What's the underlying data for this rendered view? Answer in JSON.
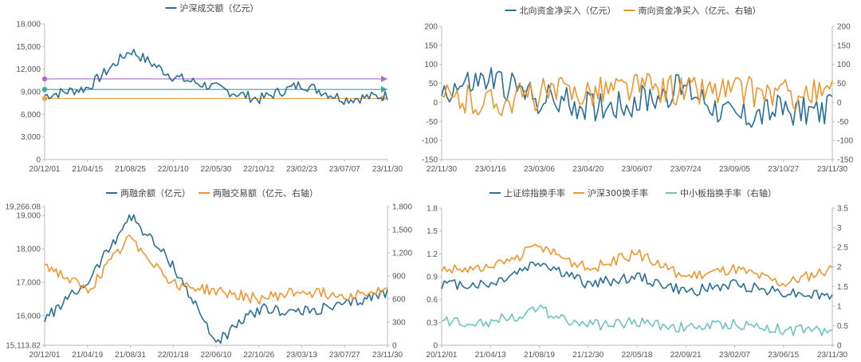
{
  "chart_data": [
    {
      "type": "line",
      "series": [
        {
          "name": "沪深成交额（亿元）",
          "color": "#2a6f97",
          "y_axis": "left",
          "x": [
            "20/12/01",
            "21/04/15",
            "21/08/25",
            "22/01/10",
            "22/05/30",
            "22/10/12",
            "23/02/23",
            "23/07/07",
            "23/11/30"
          ],
          "values": [
            8500,
            9500,
            14500,
            11000,
            9500,
            8000,
            10000,
            8000,
            8500
          ]
        }
      ],
      "x_ticks": [
        "20/12/01",
        "21/04/15",
        "21/08/25",
        "22/01/10",
        "22/05/30",
        "22/10/12",
        "23/02/23",
        "23/07/07",
        "23/11/30"
      ],
      "y_left": {
        "ticks": [
          "0",
          "3,000",
          "6,000",
          "9,000",
          "12,000",
          "15,000",
          "18,000"
        ],
        "range": [
          0,
          18000
        ]
      },
      "reference_lines": [
        {
          "value": 10700,
          "color": "#b36ad0"
        },
        {
          "value": 9300,
          "color": "#3cab9a"
        },
        {
          "value": 8100,
          "color": "#e9a84a"
        }
      ],
      "legend_position": "top-center"
    },
    {
      "type": "line",
      "series": [
        {
          "name": "北向资金净买入（亿元）",
          "color": "#2a6f97",
          "y_axis": "left",
          "x": [
            "22/11/30",
            "23/01/16",
            "23/03/06",
            "23/04/20",
            "23/06/07",
            "23/07/24",
            "23/09/05",
            "23/10/27",
            "23/11/30"
          ],
          "values": [
            30,
            60,
            10,
            -10,
            0,
            40,
            -40,
            -20,
            -20
          ]
        },
        {
          "name": "南向资金净买入（亿元、右轴）",
          "color": "#f0962e",
          "y_axis": "right",
          "x": [
            "22/11/30",
            "23/01/16",
            "23/03/06",
            "23/04/20",
            "23/06/07",
            "23/07/24",
            "23/09/05",
            "23/10/27",
            "23/11/30"
          ],
          "values": [
            10,
            0,
            20,
            30,
            40,
            30,
            30,
            20,
            20
          ]
        }
      ],
      "x_ticks": [
        "22/11/30",
        "23/01/16",
        "23/03/06",
        "23/04/20",
        "23/06/07",
        "23/07/24",
        "23/09/05",
        "23/10/27",
        "23/11/30"
      ],
      "y_left": {
        "ticks": [
          "-150",
          "-100",
          "-50",
          "0",
          "50",
          "100",
          "150",
          "200"
        ],
        "range": [
          -150,
          200
        ]
      },
      "y_right": {
        "ticks": [
          "-150",
          "-100",
          "-50",
          "0",
          "50",
          "100",
          "150",
          "200"
        ],
        "range": [
          -150,
          200
        ]
      },
      "legend_position": "top-center"
    },
    {
      "type": "line",
      "series": [
        {
          "name": "两融余额（亿元）",
          "color": "#2a6f97",
          "y_axis": "left",
          "x": [
            "20/12/01",
            "21/04/19",
            "21/08/31",
            "22/01/18",
            "22/06/10",
            "22/10/26",
            "23/03/13",
            "23/07/27",
            "23/11/30"
          ],
          "values": [
            15900,
            17000,
            19000,
            17500,
            15200,
            16200,
            16100,
            16300,
            16700
          ]
        },
        {
          "name": "两融交易额（亿元、右轴）",
          "color": "#f0962e",
          "y_axis": "right",
          "x": [
            "20/12/01",
            "21/04/19",
            "21/08/31",
            "22/01/18",
            "22/06/10",
            "22/10/26",
            "23/03/13",
            "23/07/27",
            "23/11/30"
          ],
          "values": [
            1050,
            700,
            1400,
            800,
            700,
            600,
            700,
            650,
            700
          ]
        }
      ],
      "x_ticks": [
        "20/12/01",
        "21/04/19",
        "21/08/31",
        "22/01/18",
        "22/06/10",
        "22/10/26",
        "23/03/13",
        "23/07/27",
        "23/11/30"
      ],
      "y_left": {
        "ticks": [
          "15,113.82",
          "16,000",
          "17,000",
          "18,000",
          "19,000",
          "19,266.08"
        ],
        "range": [
          15113.82,
          19266.08
        ]
      },
      "y_right": {
        "ticks": [
          "0",
          "300",
          "600",
          "900",
          "1,200",
          "1,500",
          "1,800"
        ],
        "range": [
          0,
          1800
        ]
      },
      "legend_position": "top-center"
    },
    {
      "type": "line",
      "series": [
        {
          "name": "上证综指换手率",
          "color": "#2a6f97",
          "y_axis": "left",
          "x": [
            "20/12/01",
            "21/04/13",
            "21/08/19",
            "21/12/30",
            "22/05/18",
            "22/09/21",
            "23/02/07",
            "23/06/15",
            "23/11/30"
          ],
          "values": [
            0.8,
            0.8,
            1.1,
            0.8,
            0.9,
            0.7,
            0.8,
            0.7,
            0.65
          ]
        },
        {
          "name": "沪深300换手率",
          "color": "#f0962e",
          "y_axis": "left",
          "x": [
            "20/12/01",
            "21/04/13",
            "21/08/19",
            "21/12/30",
            "22/05/18",
            "22/09/21",
            "23/02/07",
            "23/06/15",
            "23/11/30"
          ],
          "values": [
            1.0,
            1.0,
            1.3,
            1.0,
            1.2,
            0.9,
            1.0,
            0.8,
            1.0
          ]
        },
        {
          "name": "中小板指换手率（右轴）",
          "color": "#6fc3c0",
          "y_axis": "right",
          "x": [
            "20/12/01",
            "21/04/13",
            "21/08/19",
            "21/12/30",
            "22/05/18",
            "22/09/21",
            "23/02/07",
            "23/06/15",
            "23/11/30"
          ],
          "values": [
            0.6,
            0.6,
            0.9,
            0.5,
            0.6,
            0.45,
            0.55,
            0.4,
            0.35
          ]
        }
      ],
      "x_ticks": [
        "20/12/01",
        "21/04/13",
        "21/08/19",
        "21/12/30",
        "22/05/18",
        "22/09/21",
        "23/02/07",
        "23/06/15",
        "23/11/30"
      ],
      "y_left": {
        "ticks": [
          "0",
          "0.3",
          "0.6",
          "0.9",
          "1.2",
          "1.5",
          "1.8"
        ],
        "range": [
          0,
          1.8
        ]
      },
      "y_right": {
        "ticks": [
          "0",
          "0.5",
          "1",
          "1.5",
          "2",
          "2.5",
          "3",
          "3.5"
        ],
        "range": [
          0,
          3.5
        ]
      },
      "legend_position": "top-center"
    }
  ]
}
